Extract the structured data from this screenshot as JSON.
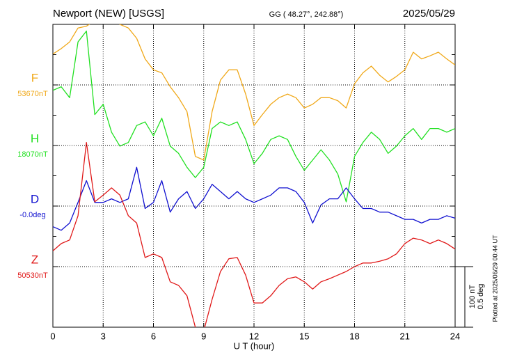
{
  "chart_data": {
    "type": "line",
    "title": "Newport (NEW)  [USGS]",
    "subtitle": "GG ( 48.27°, 242.88°)",
    "date": "2025/05/29",
    "x_label": "U T (hour)",
    "side_note": "Plotted at 2025/06/29 00:44 UT",
    "xlim": [
      0,
      24
    ],
    "xticks": [
      0,
      3,
      6,
      9,
      12,
      15,
      18,
      21,
      24
    ],
    "grid": true,
    "scale_bar": {
      "nT": {
        "value": 100,
        "label": "100 nT"
      },
      "deg": {
        "value": 0.5,
        "label": "0.5 deg"
      }
    },
    "x": [
      0,
      0.5,
      1,
      1.5,
      2,
      2.5,
      3,
      3.5,
      4,
      4.5,
      5,
      5.5,
      6,
      6.5,
      7,
      7.5,
      8,
      8.5,
      9,
      9.5,
      10,
      10.5,
      11,
      11.5,
      12,
      12.5,
      13,
      13.5,
      14,
      14.5,
      15,
      15.5,
      16,
      16.5,
      17,
      17.5,
      18,
      18.5,
      19,
      19.5,
      20,
      20.5,
      21,
      21.5,
      22,
      22.5,
      23,
      23.5,
      24
    ],
    "series": [
      {
        "name": "F",
        "baseline_label": "53670nT",
        "color": "#f0a818",
        "scale": "nT",
        "values": [
          51,
          60,
          71,
          94,
          97,
          106,
          112,
          112,
          100,
          94,
          77,
          43,
          25,
          20,
          -3,
          -21,
          -44,
          -118,
          -124,
          -44,
          8,
          25,
          25,
          -15,
          -67,
          -49,
          -32,
          -21,
          -15,
          -21,
          -38,
          -32,
          -21,
          -21,
          -26,
          -38,
          2,
          20,
          31,
          16,
          5,
          14,
          25,
          54,
          43,
          48,
          54,
          43,
          33
        ]
      },
      {
        "name": "H",
        "baseline_label": "18070nT",
        "color": "#20e020",
        "scale": "nT",
        "values": [
          91,
          97,
          79,
          171,
          189,
          51,
          68,
          22,
          -1,
          5,
          33,
          39,
          16,
          45,
          -1,
          -13,
          -36,
          -53,
          -36,
          28,
          39,
          33,
          39,
          10,
          -30,
          -13,
          10,
          16,
          10,
          -18,
          -41,
          -24,
          -7,
          -24,
          -47,
          -93,
          -18,
          5,
          22,
          10,
          -13,
          -1,
          16,
          28,
          10,
          28,
          28,
          22,
          28
        ]
      },
      {
        "name": "D",
        "baseline_label": "-0.0deg",
        "color": "#1010d0",
        "scale": "deg",
        "values": [
          -0.17,
          -0.2,
          -0.14,
          0.03,
          0.21,
          0.03,
          0.03,
          0.06,
          0.03,
          0.06,
          0.32,
          -0.02,
          0.03,
          0.21,
          -0.05,
          0.06,
          0.12,
          -0.02,
          0.06,
          0.18,
          0.12,
          0.06,
          0.12,
          0.06,
          0.03,
          0.06,
          0.09,
          0.15,
          0.15,
          0.12,
          0.03,
          -0.14,
          0.01,
          0.06,
          0.06,
          0.15,
          0.06,
          -0.02,
          -0.02,
          -0.05,
          -0.05,
          -0.08,
          -0.11,
          -0.11,
          -0.14,
          -0.11,
          -0.11,
          -0.08,
          -0.1
        ]
      },
      {
        "name": "Z",
        "baseline_label": "50530nT",
        "color": "#e01818",
        "scale": "nT",
        "values": [
          26,
          38,
          44,
          84,
          205,
          107,
          118,
          130,
          118,
          84,
          72,
          15,
          21,
          15,
          -25,
          -31,
          -48,
          -100,
          -106,
          -54,
          -8,
          13,
          15,
          -14,
          -60,
          -60,
          -48,
          -31,
          -20,
          -17,
          -25,
          -37,
          -25,
          -20,
          -14,
          -8,
          0,
          6,
          6,
          9,
          13,
          21,
          38,
          47,
          44,
          38,
          44,
          38,
          29
        ]
      }
    ]
  }
}
